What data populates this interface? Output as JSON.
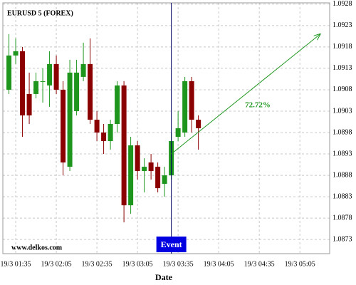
{
  "chart_data": {
    "type": "candlestick",
    "title": "EURUSD 5 (FOREX)",
    "watermark": "www.delkos.com",
    "x_label": "Date",
    "x": [
      90,
      95,
      100,
      105,
      110,
      115,
      120,
      125,
      130,
      135,
      140,
      145,
      150,
      155,
      160,
      165,
      170,
      175,
      180,
      185,
      190,
      195,
      200,
      205,
      210,
      215,
      220,
      225,
      230
    ],
    "open": [
      1.0908,
      1.0916,
      1.0917,
      1.0907,
      1.0907,
      1.091,
      1.0909,
      1.0914,
      1.0908,
      1.089,
      1.0903,
      1.0911,
      1.0914,
      1.0901,
      1.0898,
      1.0896,
      1.09,
      1.0909,
      1.0881,
      1.0895,
      1.0889,
      1.0891,
      1.089,
      1.0886,
      1.0888,
      1.0897,
      1.0898,
      1.091,
      1.0901
    ],
    "high": [
      1.0921,
      1.092,
      1.0918,
      1.0912,
      1.0912,
      1.0913,
      1.0917,
      1.0916,
      1.091,
      1.0915,
      1.0915,
      1.0919,
      1.092,
      1.0903,
      1.09,
      1.0901,
      1.091,
      1.091,
      1.0897,
      1.0896,
      1.0892,
      1.0893,
      1.0891,
      1.089,
      1.0898,
      1.0903,
      1.0911,
      1.0911,
      1.0902
    ],
    "low": [
      1.0907,
      1.0914,
      1.0897,
      1.09,
      1.0906,
      1.0905,
      1.0904,
      1.0907,
      1.0888,
      1.0889,
      1.0902,
      1.091,
      1.09,
      1.0896,
      1.0893,
      1.0894,
      1.0898,
      1.0877,
      1.0879,
      1.0887,
      1.0884,
      1.0887,
      1.0884,
      1.0883,
      1.0887,
      1.0896,
      1.0897,
      1.0898,
      1.0894
    ],
    "close": [
      1.0916,
      1.0917,
      1.0902,
      1.0902,
      1.091,
      1.091,
      1.0914,
      1.0908,
      1.0891,
      1.0912,
      1.0912,
      1.0914,
      1.0901,
      1.0898,
      1.0896,
      1.09,
      1.0909,
      1.0881,
      1.0895,
      1.0889,
      1.089,
      1.0889,
      1.0885,
      1.0888,
      1.0896,
      1.0899,
      1.091,
      1.0901,
      1.0899
    ],
    "up_color": "#1e961e",
    "down_color": "#8b0000",
    "xlim": [
      85.5,
      327
    ],
    "ylim": [
      1.08697,
      1.09283
    ],
    "xticks": [
      {
        "value": 95,
        "label": "19/3 01:35"
      },
      {
        "value": 125,
        "label": "19/3 02:05"
      },
      {
        "value": 155,
        "label": "19/3 02:35"
      },
      {
        "value": 185,
        "label": "19/3 03:05"
      },
      {
        "value": 215,
        "label": "19/3 03:35"
      },
      {
        "value": 245,
        "label": "19/3 04:05"
      },
      {
        "value": 275,
        "label": "19/3 04:35"
      },
      {
        "value": 305,
        "label": "19/3 05:05"
      }
    ],
    "yticks": [
      1.0873,
      1.0878,
      1.0883,
      1.0888,
      1.0893,
      1.0898,
      1.0903,
      1.0908,
      1.0913,
      1.0918,
      1.0923,
      1.0928
    ],
    "grid": true,
    "event": {
      "label": "Event",
      "x": 210,
      "color": "#0000e0"
    },
    "projection": {
      "label": "72.72%",
      "from": [
        210,
        1.0893
      ],
      "to": [
        320,
        1.0921
      ],
      "color": "#1e961e"
    }
  }
}
